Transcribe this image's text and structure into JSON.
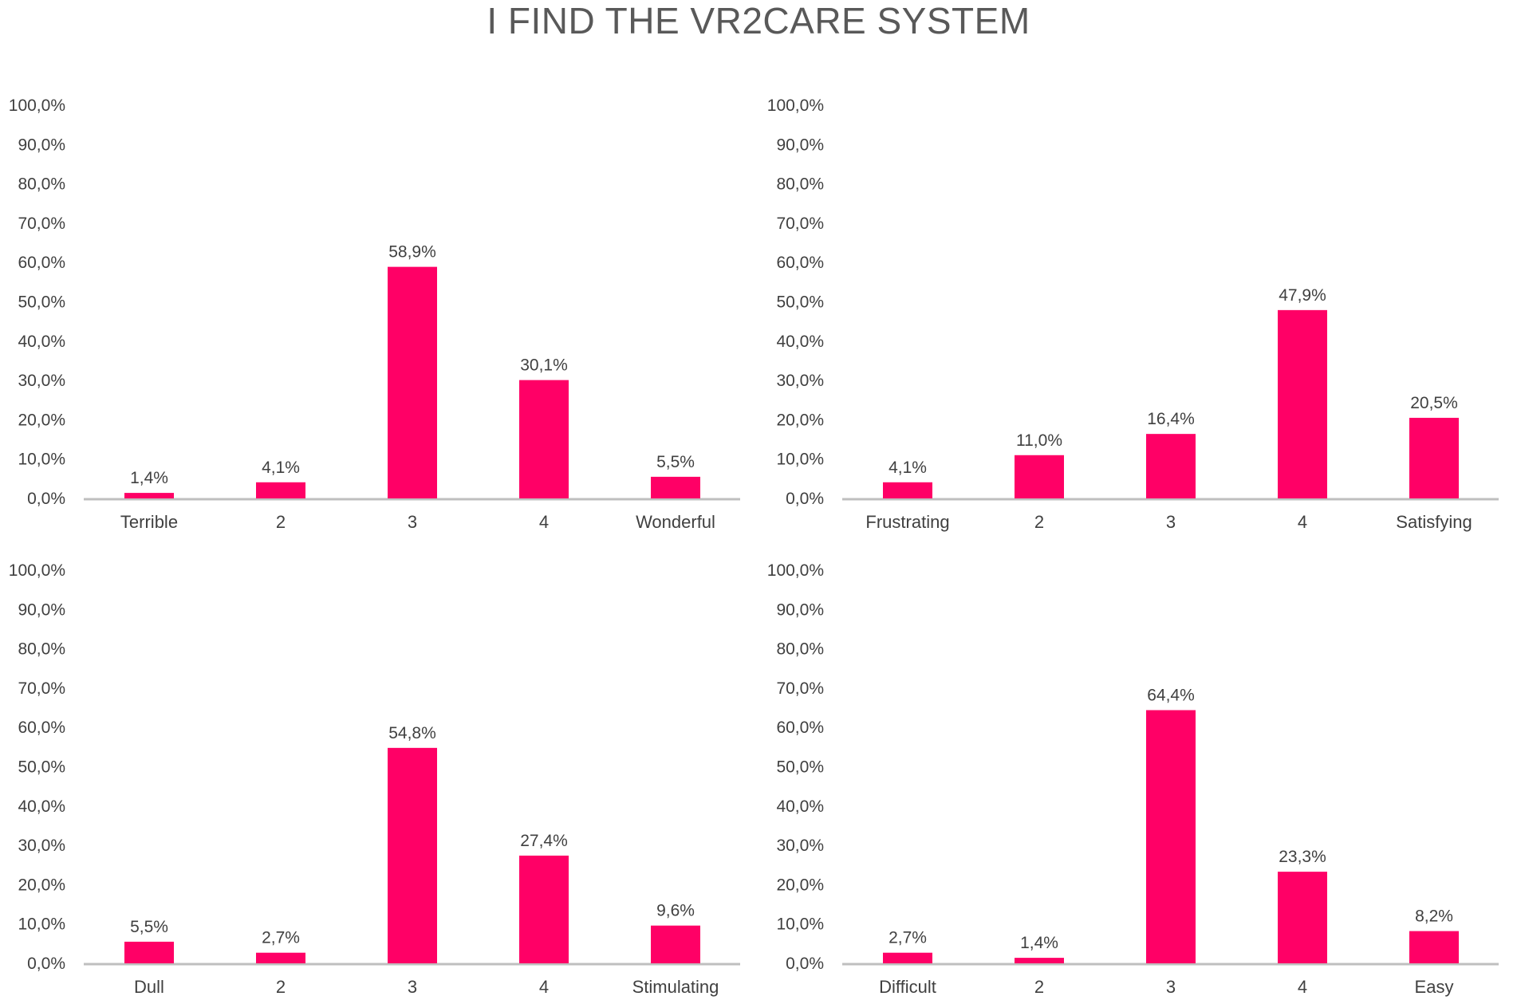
{
  "page_title": "I FIND THE VR2CARE SYSTEM",
  "colors": {
    "bar": "#FF0066",
    "axis": "#BFBFBF",
    "text": "#404040",
    "title": "#595959"
  },
  "chart_data": [
    {
      "type": "bar",
      "categories": [
        "Terrible",
        "2",
        "3",
        "4",
        "Wonderful"
      ],
      "values": [
        1.4,
        4.1,
        58.9,
        30.1,
        5.5
      ],
      "data_labels": [
        "1,4%",
        "4,1%",
        "58,9%",
        "30,1%",
        "5,5%"
      ],
      "ylim": [
        0,
        100
      ],
      "yticks": [
        "0,0%",
        "10,0%",
        "20,0%",
        "30,0%",
        "40,0%",
        "50,0%",
        "60,0%",
        "70,0%",
        "80,0%",
        "90,0%",
        "100,0%"
      ],
      "grid": false
    },
    {
      "type": "bar",
      "categories": [
        "Frustrating",
        "2",
        "3",
        "4",
        "Satisfying"
      ],
      "values": [
        4.1,
        11.0,
        16.4,
        47.9,
        20.5
      ],
      "data_labels": [
        "4,1%",
        "11,0%",
        "16,4%",
        "47,9%",
        "20,5%"
      ],
      "ylim": [
        0,
        100
      ],
      "yticks": [
        "0,0%",
        "10,0%",
        "20,0%",
        "30,0%",
        "40,0%",
        "50,0%",
        "60,0%",
        "70,0%",
        "80,0%",
        "90,0%",
        "100,0%"
      ],
      "grid": false
    },
    {
      "type": "bar",
      "categories": [
        "Dull",
        "2",
        "3",
        "4",
        "Stimulating"
      ],
      "values": [
        5.5,
        2.7,
        54.8,
        27.4,
        9.6
      ],
      "data_labels": [
        "5,5%",
        "2,7%",
        "54,8%",
        "27,4%",
        "9,6%"
      ],
      "ylim": [
        0,
        100
      ],
      "yticks": [
        "0,0%",
        "10,0%",
        "20,0%",
        "30,0%",
        "40,0%",
        "50,0%",
        "60,0%",
        "70,0%",
        "80,0%",
        "90,0%",
        "100,0%"
      ],
      "grid": false
    },
    {
      "type": "bar",
      "categories": [
        "Difficult",
        "2",
        "3",
        "4",
        "Easy"
      ],
      "values": [
        2.7,
        1.4,
        64.4,
        23.3,
        8.2
      ],
      "data_labels": [
        "2,7%",
        "1,4%",
        "64,4%",
        "23,3%",
        "8,2%"
      ],
      "ylim": [
        0,
        100
      ],
      "yticks": [
        "0,0%",
        "10,0%",
        "20,0%",
        "30,0%",
        "40,0%",
        "50,0%",
        "60,0%",
        "70,0%",
        "80,0%",
        "90,0%",
        "100,0%"
      ],
      "grid": false
    }
  ]
}
